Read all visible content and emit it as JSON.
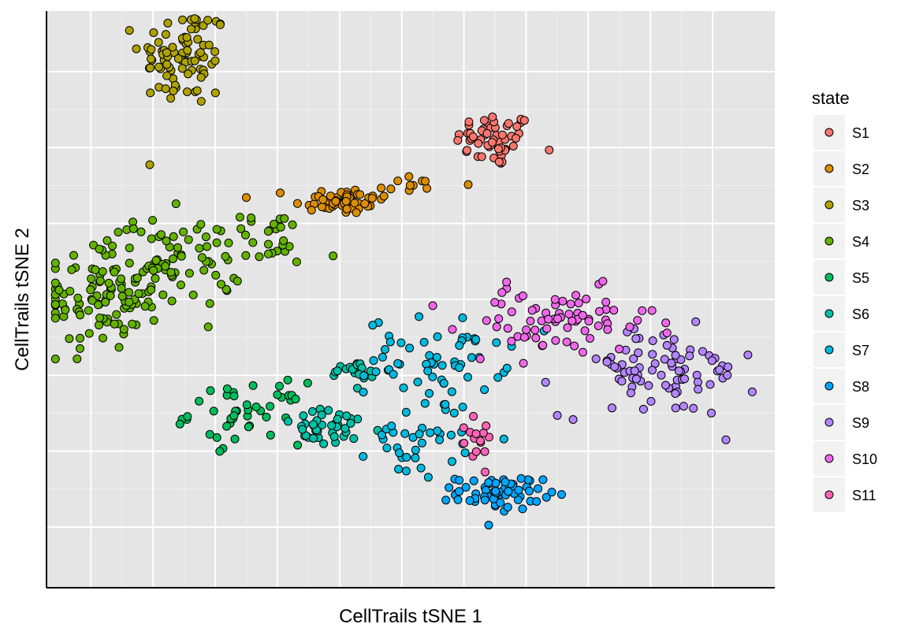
{
  "chart_data": {
    "type": "scatter",
    "title": "",
    "xlabel": "CellTrails tSNE 1",
    "ylabel": "CellTrails tSNE 2",
    "xlim": [
      -40,
      42
    ],
    "ylim": [
      -38,
      38
    ],
    "x_ticks": [
      -35,
      -28,
      -21,
      -14,
      -7,
      0,
      7,
      14,
      21,
      28,
      35
    ],
    "y_ticks": [
      -30,
      -20,
      -10,
      0,
      10,
      20,
      30
    ],
    "grid": true,
    "x_tick_labels_shown": false,
    "y_tick_labels_shown": false,
    "legend": {
      "title": "state",
      "position": "right"
    },
    "marker": {
      "shape": "circle",
      "outline": "#000000"
    },
    "series": [
      {
        "name": "S1",
        "color": "#F8766D",
        "clusters": [
          {
            "n": 55,
            "cx": 10.5,
            "cy": 21.0,
            "sx": 2.2,
            "sy": 1.8
          }
        ]
      },
      {
        "name": "S2",
        "color": "#DB8E00",
        "clusters": [
          {
            "n": 55,
            "cx": -7.0,
            "cy": 13.0,
            "sx": 2.6,
            "sy": 0.9
          },
          {
            "n": 12,
            "cx": 1.0,
            "cy": 15.0,
            "sx": 2.8,
            "sy": 0.8
          }
        ]
      },
      {
        "name": "S3",
        "color": "#AEA200",
        "clusters": [
          {
            "n": 85,
            "cx": -24.5,
            "cy": 32.0,
            "sx": 2.5,
            "sy": 3.4
          }
        ]
      },
      {
        "name": "S4",
        "color": "#64B200",
        "clusters": [
          {
            "n": 110,
            "cx": -34.0,
            "cy": 0.5,
            "sx": 3.4,
            "sy": 3.6
          },
          {
            "n": 70,
            "cx": -25.0,
            "cy": 5.0,
            "sx": 3.5,
            "sy": 3.0
          },
          {
            "n": 25,
            "cx": -15.0,
            "cy": 8.0,
            "sx": 2.6,
            "sy": 2.0
          }
        ]
      },
      {
        "name": "S5",
        "color": "#00BD5C",
        "clusters": [
          {
            "n": 45,
            "cx": -17.5,
            "cy": -15.0,
            "sx": 3.2,
            "sy": 2.0
          }
        ]
      },
      {
        "name": "S6",
        "color": "#00C1A7",
        "clusters": [
          {
            "n": 40,
            "cx": -8.0,
            "cy": -17.0,
            "sx": 3.0,
            "sy": 1.2
          },
          {
            "n": 22,
            "cx": -5.0,
            "cy": -9.5,
            "sx": 1.8,
            "sy": 0.8
          }
        ]
      },
      {
        "name": "S7",
        "color": "#00BADE",
        "clusters": [
          {
            "n": 55,
            "cx": 4.0,
            "cy": -7.5,
            "sx": 4.0,
            "sy": 2.5
          },
          {
            "n": 40,
            "cx": 2.5,
            "cy": -18.0,
            "sx": 3.0,
            "sy": 2.8
          }
        ]
      },
      {
        "name": "S8",
        "color": "#00A6FF",
        "clusters": [
          {
            "n": 65,
            "cx": 11.0,
            "cy": -25.5,
            "sx": 2.4,
            "sy": 1.1
          }
        ]
      },
      {
        "name": "S9",
        "color": "#B385FF",
        "clusters": [
          {
            "n": 85,
            "cx": 29.0,
            "cy": -9.5,
            "sx": 5.5,
            "sy": 3.0
          }
        ]
      },
      {
        "name": "S10",
        "color": "#EF67EB",
        "clusters": [
          {
            "n": 75,
            "cx": 17.5,
            "cy": -3.0,
            "sx": 5.5,
            "sy": 2.2
          }
        ]
      },
      {
        "name": "S11",
        "color": "#FF63B6",
        "clusters": [
          {
            "n": 15,
            "cx": 8.0,
            "cy": -17.5,
            "sx": 1.5,
            "sy": 2.0
          }
        ]
      }
    ]
  }
}
